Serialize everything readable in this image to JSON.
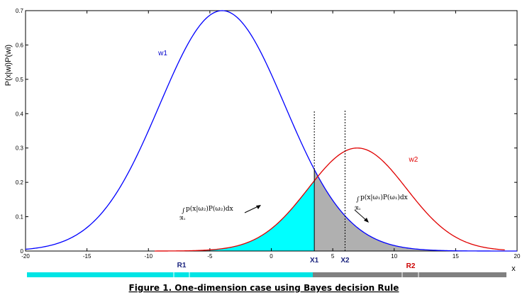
{
  "chart_data": {
    "type": "area",
    "ylabel": "P(x|wi)P(wi)",
    "xlabel": "x",
    "xlim": [
      -20,
      20
    ],
    "ylim": [
      0,
      0.7
    ],
    "x_ticks": [
      -20,
      -15,
      -10,
      -5,
      0,
      5,
      10,
      15,
      20
    ],
    "x_tick_labels": [
      "-20",
      "-15",
      "-10",
      "-5",
      "0",
      "5",
      "10",
      "15",
      "20"
    ],
    "y_ticks": [
      0,
      0.1,
      0.2,
      0.3,
      0.4,
      0.5,
      0.6,
      0.7
    ],
    "y_tick_labels": [
      "0",
      "0.1",
      "0.2",
      "0.3",
      "0.4",
      "0.5",
      "0.6",
      "0.7"
    ],
    "series": [
      {
        "name": "w1",
        "color": "#0000ff",
        "peak_x": -4,
        "peak_y": 0.7,
        "sigma": 5.1,
        "x": [
          -20,
          -15,
          -10,
          -5,
          -4,
          0,
          3.5,
          5,
          10,
          15,
          20
        ],
        "y": [
          0.005,
          0.066,
          0.352,
          0.688,
          0.7,
          0.516,
          0.232,
          0.157,
          0.01,
          0.003,
          0.0
        ]
      },
      {
        "name": "w2",
        "color": "#e00000",
        "peak_x": 7,
        "peak_y": 0.3,
        "sigma": 4.0,
        "x": [
          -9.5,
          -5,
          0,
          3.5,
          5,
          7,
          10,
          15,
          19
        ],
        "y": [
          0.0,
          0.003,
          0.065,
          0.204,
          0.264,
          0.3,
          0.227,
          0.041,
          0.017
        ]
      }
    ],
    "decision_points": [
      {
        "label": "X1",
        "x": 3.5,
        "line_top": 0.41
      },
      {
        "label": "X2",
        "x": 6.0,
        "line_top": 0.41
      }
    ],
    "shaded_regions": [
      {
        "name": "cyan",
        "color": "#00ffff",
        "x_from": -9.5,
        "x_to": 3.5,
        "under": "w2"
      },
      {
        "name": "gray",
        "color": "#b0b0b0",
        "x_from": 3.5,
        "x_to": 14,
        "under": "w1"
      }
    ],
    "series_labels": [
      {
        "text": "w1",
        "x": -9.2,
        "y": 0.57
      },
      {
        "text": "w2",
        "x": 11.2,
        "y": 0.26
      }
    ],
    "region_labels": [
      "R1",
      "R2"
    ],
    "annotations": [
      {
        "main": "p(x|ω₂)P(ω₂)dx",
        "sub": "ℜ₁"
      },
      {
        "main": "p(x|ω₁)P(ω₁)dx",
        "sub": "ℜ₂"
      }
    ],
    "integral_sign": "∫",
    "grid": false,
    "legend": "none"
  },
  "colors": {
    "w1": "#0000ff",
    "w2": "#e00000",
    "region1": "#00ffff",
    "region2": "#b0b0b0",
    "bar_r1": "#00e5e5",
    "bar_r2": "#808080"
  },
  "caption": "Figure 1.  One-dimension case using Bayes decision Rule"
}
